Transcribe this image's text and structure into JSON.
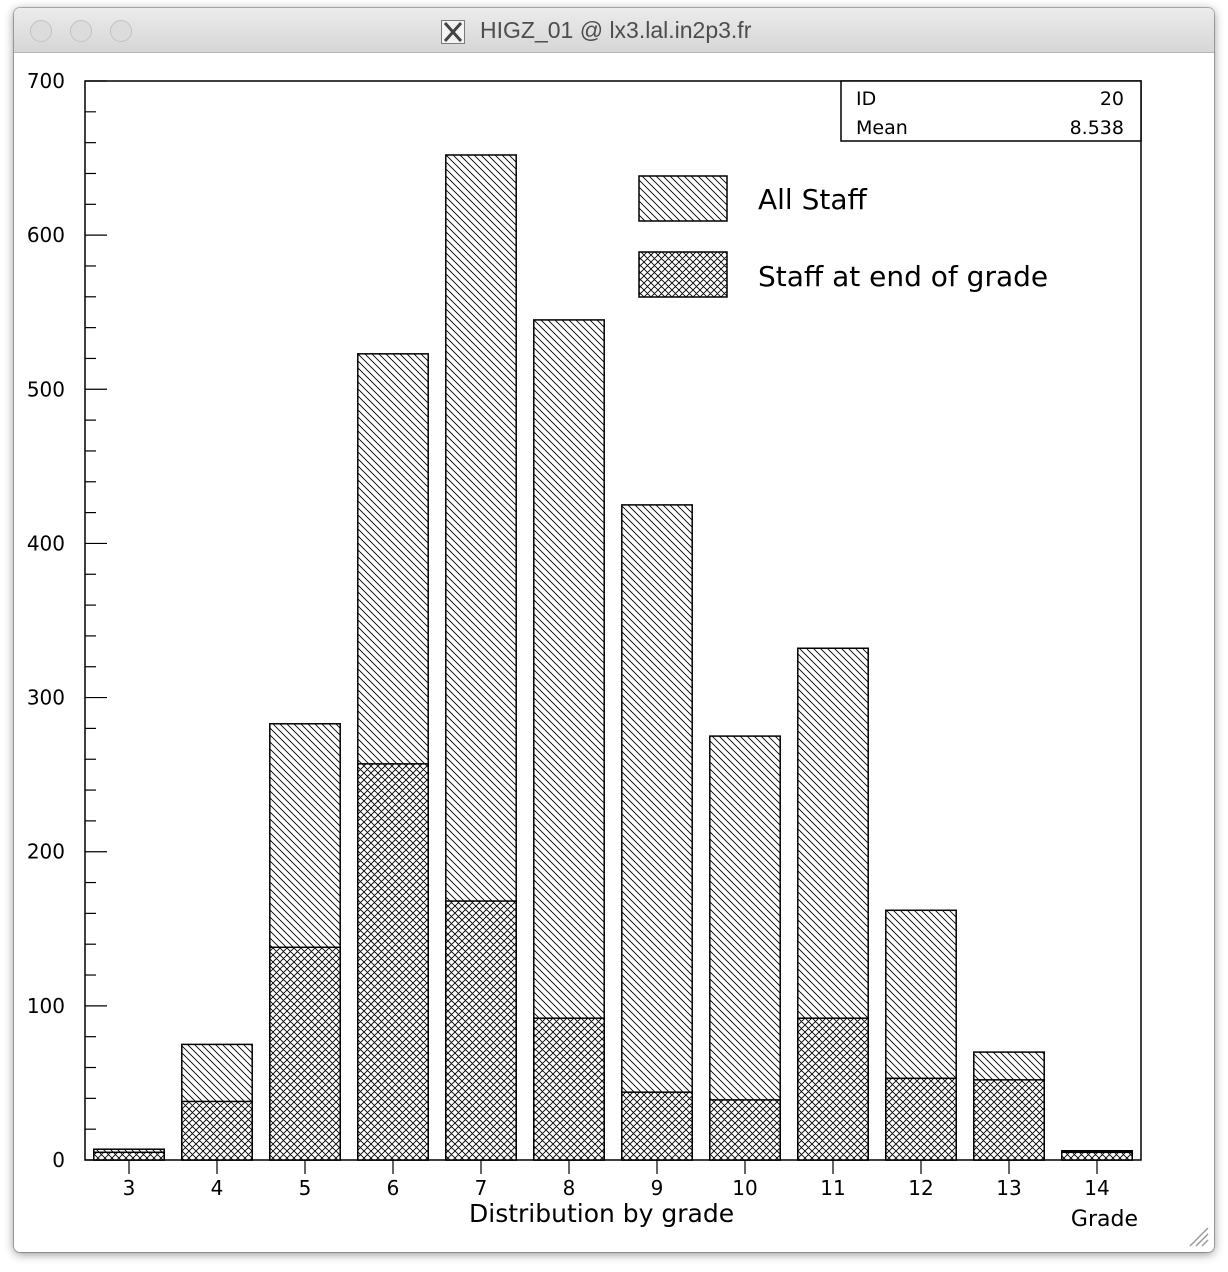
{
  "window": {
    "title": "HIGZ_01 @ lx3.lal.in2p3.fr",
    "icon": "x11-icon"
  },
  "stats_box": {
    "rows": [
      {
        "label": "ID",
        "value": "20"
      },
      {
        "label": "Mean",
        "value": "8.538"
      }
    ]
  },
  "chart_data": {
    "type": "bar",
    "subtype": "overlaid histogram",
    "title": "",
    "xlabel": "Distribution by grade",
    "xlabel_right": "Grade",
    "ylabel": "",
    "categories": [
      "3",
      "4",
      "5",
      "6",
      "7",
      "8",
      "9",
      "10",
      "11",
      "12",
      "13",
      "14"
    ],
    "ylim": [
      0,
      700
    ],
    "y_ticks": [
      0,
      100,
      200,
      300,
      400,
      500,
      600,
      700
    ],
    "y_minor_step": 20,
    "grid": false,
    "legend_position": "top-right",
    "series": [
      {
        "name": "All Staff",
        "pattern": "diagonal-hatch",
        "values": [
          7,
          75,
          283,
          523,
          652,
          545,
          425,
          275,
          332,
          162,
          70,
          6
        ]
      },
      {
        "name": "Staff at end of grade",
        "pattern": "cross-hatch",
        "values": [
          5,
          38,
          138,
          257,
          168,
          92,
          44,
          39,
          92,
          53,
          52,
          5
        ]
      }
    ]
  },
  "colors": {
    "ink": "#000000",
    "background": "#ffffff",
    "titlebar": "#dedede",
    "title_text": "#4d4d4d"
  }
}
